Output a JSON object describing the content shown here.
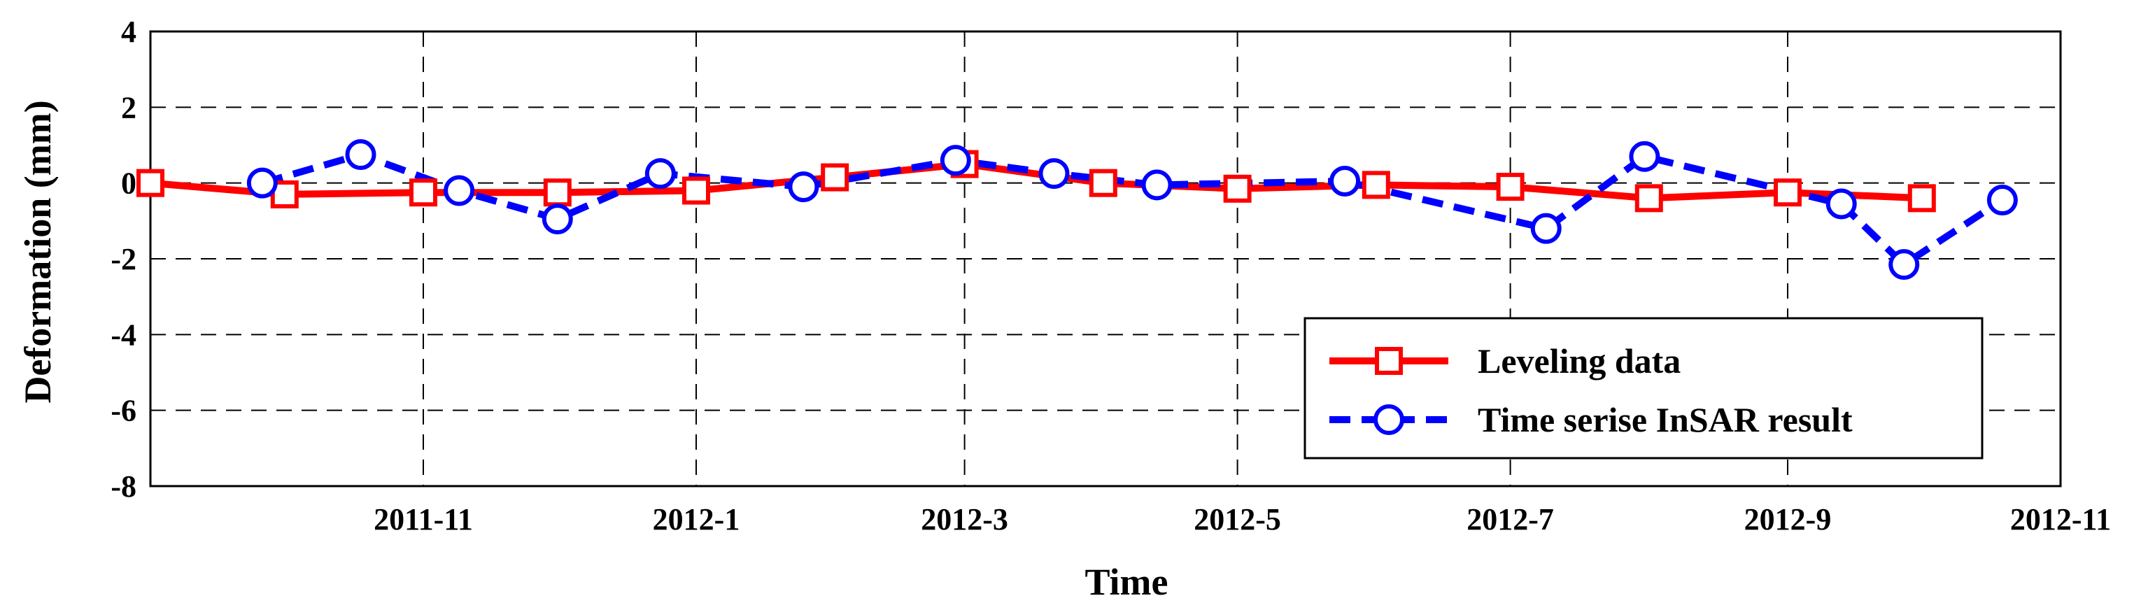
{
  "chart_data": {
    "type": "line",
    "xlabel": "Time",
    "ylabel": "Deformation (mm)",
    "xlim": [
      "2011-09-01",
      "2012-11-01"
    ],
    "ylim": [
      -8,
      4
    ],
    "x_ticks": [
      "2011-11",
      "2012-1",
      "2012-3",
      "2012-5",
      "2012-7",
      "2012-9",
      "2012-11"
    ],
    "y_ticks": [
      4,
      2,
      0,
      -2,
      -4,
      -6,
      -8
    ],
    "grid": true,
    "legend_position": "bottom-right",
    "series": [
      {
        "name": "Leveling data",
        "color": "#ff0000",
        "line_style": "solid",
        "marker": "square",
        "points": [
          {
            "x": "2011-09-01",
            "y": 0.0
          },
          {
            "x": "2011-10-01",
            "y": -0.3
          },
          {
            "x": "2011-11-01",
            "y": -0.25
          },
          {
            "x": "2011-12-01",
            "y": -0.25
          },
          {
            "x": "2012-01-01",
            "y": -0.2
          },
          {
            "x": "2012-02-01",
            "y": 0.15
          },
          {
            "x": "2012-03-01",
            "y": 0.5
          },
          {
            "x": "2012-04-01",
            "y": 0.0
          },
          {
            "x": "2012-05-01",
            "y": -0.15
          },
          {
            "x": "2012-06-01",
            "y": -0.05
          },
          {
            "x": "2012-07-01",
            "y": -0.1
          },
          {
            "x": "2012-08-01",
            "y": -0.4
          },
          {
            "x": "2012-09-01",
            "y": -0.25
          },
          {
            "x": "2012-10-01",
            "y": -0.4
          }
        ]
      },
      {
        "name": "Time serise InSAR result",
        "color": "#0000ff",
        "line_style": "dashed",
        "marker": "circle",
        "points": [
          {
            "x": "2011-09-26",
            "y": 0.0
          },
          {
            "x": "2011-10-18",
            "y": 0.75
          },
          {
            "x": "2011-11-09",
            "y": -0.2
          },
          {
            "x": "2011-12-01",
            "y": -0.95
          },
          {
            "x": "2011-12-24",
            "y": 0.25
          },
          {
            "x": "2012-01-25",
            "y": -0.1
          },
          {
            "x": "2012-02-28",
            "y": 0.6
          },
          {
            "x": "2012-03-21",
            "y": 0.25
          },
          {
            "x": "2012-04-13",
            "y": -0.05
          },
          {
            "x": "2012-05-25",
            "y": 0.05
          },
          {
            "x": "2012-07-09",
            "y": -1.2
          },
          {
            "x": "2012-07-31",
            "y": 0.7
          },
          {
            "x": "2012-09-13",
            "y": -0.55
          },
          {
            "x": "2012-09-27",
            "y": -2.15
          },
          {
            "x": "2012-10-19",
            "y": -0.45
          }
        ]
      }
    ]
  }
}
